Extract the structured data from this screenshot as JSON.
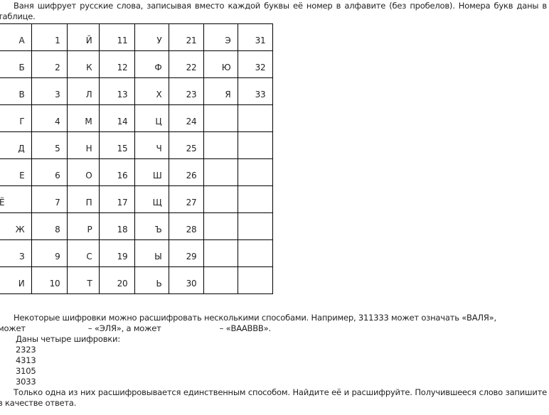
{
  "intro": "Ваня шифрует русские слова, записывая вместо каждой буквы её номер в алфавите (без пробелов). Номера букв даны в таблице.",
  "table": [
    [
      [
        "А",
        "1"
      ],
      [
        "Й",
        "11"
      ],
      [
        "У",
        "21"
      ],
      [
        "Э",
        "31"
      ]
    ],
    [
      [
        "Б",
        "2"
      ],
      [
        "К",
        "12"
      ],
      [
        "Ф",
        "22"
      ],
      [
        "Ю",
        "32"
      ]
    ],
    [
      [
        "В",
        "3"
      ],
      [
        "Л",
        "13"
      ],
      [
        "Х",
        "23"
      ],
      [
        "Я",
        "33"
      ]
    ],
    [
      [
        "Г",
        "4"
      ],
      [
        "М",
        "14"
      ],
      [
        "Ц",
        "24"
      ],
      [
        "",
        ""
      ]
    ],
    [
      [
        "Д",
        "5"
      ],
      [
        "Н",
        "15"
      ],
      [
        "Ч",
        "25"
      ],
      [
        "",
        ""
      ]
    ],
    [
      [
        "Е",
        "6"
      ],
      [
        "О",
        "16"
      ],
      [
        "Ш",
        "26"
      ],
      [
        "",
        ""
      ]
    ],
    [
      [
        "Ё",
        "7"
      ],
      [
        "П",
        "17"
      ],
      [
        "Щ",
        "27"
      ],
      [
        "",
        ""
      ]
    ],
    [
      [
        "Ж",
        "8"
      ],
      [
        "Р",
        "18"
      ],
      [
        "Ъ",
        "28"
      ],
      [
        "",
        ""
      ]
    ],
    [
      [
        "З",
        "9"
      ],
      [
        "С",
        "19"
      ],
      [
        "Ы",
        "29"
      ],
      [
        "",
        ""
      ]
    ],
    [
      [
        "И",
        "10"
      ],
      [
        "Т",
        "20"
      ],
      [
        "Ь",
        "30"
      ],
      [
        "",
        ""
      ]
    ]
  ],
  "para2_line1": "Некоторые шифровки можно расшифровать несколькими способами. Например, 311333 может означать «ВАЛЯ»,",
  "para2_line2a": "может",
  "para2_line2b": "– «ЭЛЯ», а может",
  "para2_line2c": "– «ВААВВВ».",
  "given": "Даны четыре шифровки:",
  "codes": [
    "2323",
    "4313",
    "3105",
    "3033"
  ],
  "task": "Только одна из них расшифровывается единственным способом. Найдите её и расшифруйте. Получившееся слово запишите в качестве ответа."
}
